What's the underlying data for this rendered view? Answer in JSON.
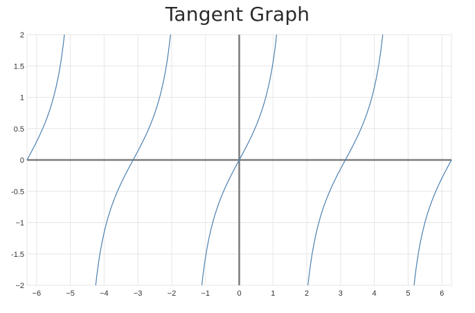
{
  "chart_data": {
    "type": "line",
    "title": "Tangent Graph",
    "xlabel": "",
    "ylabel": "",
    "xlim": [
      -6.283185307,
      6.283185307
    ],
    "ylim": [
      -2,
      2
    ],
    "x_ticks": [
      -6,
      -5,
      -4,
      -3,
      -2,
      -1,
      0,
      1,
      2,
      3,
      4,
      5,
      6
    ],
    "x_tick_labels": [
      "−6",
      "−5",
      "−4",
      "−3",
      "−2",
      "−1",
      "0",
      "1",
      "2",
      "3",
      "4",
      "5",
      "6"
    ],
    "y_ticks": [
      2,
      1.5,
      1,
      0.5,
      0,
      -0.5,
      -1,
      -1.5,
      -2
    ],
    "y_tick_labels": [
      "2",
      "1.5",
      "1",
      "0.5",
      "0",
      "-0.5",
      "−1",
      "-1.5",
      "−2"
    ],
    "grid": true,
    "series": [
      {
        "function": "tan(x)",
        "color": "#4a7fb0",
        "x": [
          -6.2832,
          -6.2,
          -6.0,
          -5.8,
          -5.6,
          -5.4,
          -5.2,
          -5.176,
          -4.249,
          -4.2,
          -4.0,
          -3.8,
          -3.6,
          -3.4,
          -3.2,
          -3.1416,
          -3.0,
          -2.8,
          -2.6,
          -2.4,
          -2.2,
          -2.034,
          -1.107,
          -1.0,
          -0.8,
          -0.6,
          -0.4,
          -0.2,
          0.0,
          0.2,
          0.4,
          0.6,
          0.8,
          1.0,
          1.107,
          2.034,
          2.2,
          2.4,
          2.6,
          2.8,
          3.0,
          3.1416,
          3.2,
          3.4,
          3.6,
          3.8,
          4.0,
          4.2,
          4.249,
          5.176,
          5.2,
          5.4,
          5.6,
          5.8,
          6.0,
          6.2,
          6.2832
        ],
        "y": [
          0.0,
          0.084,
          0.291,
          0.52,
          0.813,
          1.223,
          1.886,
          2.0,
          -2.0,
          -1.778,
          -1.158,
          -0.774,
          -0.494,
          -0.264,
          -0.058,
          0.0,
          0.143,
          0.356,
          0.602,
          0.916,
          1.374,
          2.0,
          -2.0,
          -1.557,
          -1.03,
          -0.684,
          -0.423,
          -0.203,
          0.0,
          0.203,
          0.423,
          0.684,
          1.03,
          1.557,
          2.0,
          -2.0,
          -1.374,
          -0.916,
          -0.602,
          -0.356,
          -0.143,
          0.0,
          0.058,
          0.264,
          0.494,
          0.774,
          1.158,
          1.778,
          2.0,
          -2.0,
          -1.886,
          -1.223,
          -0.813,
          -0.52,
          -0.291,
          -0.084,
          0.0
        ]
      }
    ]
  }
}
